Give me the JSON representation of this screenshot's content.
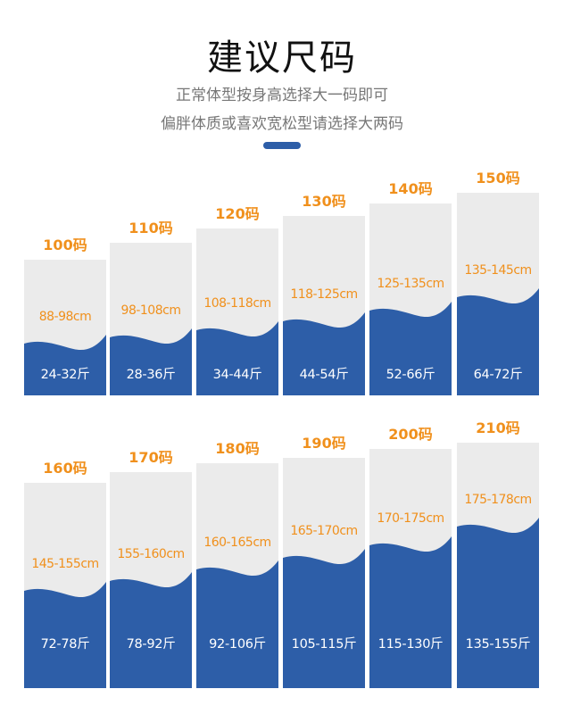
{
  "header": {
    "title": "建议尺码",
    "subtitle_1": "正常体型按身高选择大一码即可",
    "subtitle_2": "偏胖体质或喜欢宽松型请选择大两码"
  },
  "colors": {
    "accent_blue": "#2d5ea8",
    "size_orange": "#f0901c",
    "card_gray": "#ebebeb"
  },
  "rows": [
    {
      "sizes": [
        {
          "size": "100码",
          "height": "88-98cm",
          "weight": "24-32斤"
        },
        {
          "size": "110码",
          "height": "98-108cm",
          "weight": "28-36斤"
        },
        {
          "size": "120码",
          "height": "108-118cm",
          "weight": "34-44斤"
        },
        {
          "size": "130码",
          "height": "118-125cm",
          "weight": "44-54斤"
        },
        {
          "size": "140码",
          "height": "125-135cm",
          "weight": "52-66斤"
        },
        {
          "size": "150码",
          "height": "135-145cm",
          "weight": "64-72斤"
        }
      ]
    },
    {
      "sizes": [
        {
          "size": "160码",
          "height": "145-155cm",
          "weight": "72-78斤"
        },
        {
          "size": "170码",
          "height": "155-160cm",
          "weight": "78-92斤"
        },
        {
          "size": "180码",
          "height": "160-165cm",
          "weight": "92-106斤"
        },
        {
          "size": "190码",
          "height": "165-170cm",
          "weight": "105-115斤"
        },
        {
          "size": "200码",
          "height": "170-175cm",
          "weight": "115-130斤"
        },
        {
          "size": "210码",
          "height": "175-178cm",
          "weight": "135-155斤"
        }
      ]
    }
  ]
}
